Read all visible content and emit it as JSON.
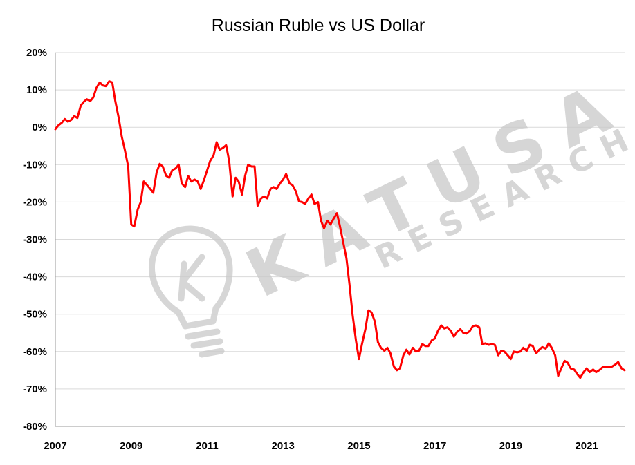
{
  "chart_data": {
    "type": "line",
    "title": "Russian Ruble vs US Dollar",
    "xlabel": "",
    "ylabel": "",
    "xlim": [
      2007,
      2022
    ],
    "ylim": [
      -80,
      20
    ],
    "x_ticks": [
      "2007",
      "2009",
      "2011",
      "2013",
      "2015",
      "2017",
      "2019",
      "2021"
    ],
    "y_ticks": [
      "20%",
      "10%",
      "0%",
      "-10%",
      "-20%",
      "-30%",
      "-40%",
      "-50%",
      "-60%",
      "-70%",
      "-80%"
    ],
    "grid": true,
    "legend": "none",
    "series": [
      {
        "color": "#ff0000",
        "points": [
          [
            2007.0,
            -0.5
          ],
          [
            2007.08,
            0.5
          ],
          [
            2007.17,
            1.2
          ],
          [
            2007.25,
            2.2
          ],
          [
            2007.33,
            1.5
          ],
          [
            2007.42,
            2.0
          ],
          [
            2007.5,
            3.0
          ],
          [
            2007.58,
            2.5
          ],
          [
            2007.67,
            5.8
          ],
          [
            2007.75,
            6.8
          ],
          [
            2007.83,
            7.5
          ],
          [
            2007.92,
            7.0
          ],
          [
            2008.0,
            8.0
          ],
          [
            2008.08,
            10.5
          ],
          [
            2008.17,
            12.0
          ],
          [
            2008.25,
            11.2
          ],
          [
            2008.33,
            11.0
          ],
          [
            2008.42,
            12.3
          ],
          [
            2008.5,
            12.0
          ],
          [
            2008.58,
            7.0
          ],
          [
            2008.67,
            2.5
          ],
          [
            2008.75,
            -2.5
          ],
          [
            2008.83,
            -6.0
          ],
          [
            2008.92,
            -10.5
          ],
          [
            2009.0,
            -26.0
          ],
          [
            2009.08,
            -26.5
          ],
          [
            2009.17,
            -22.0
          ],
          [
            2009.25,
            -20.0
          ],
          [
            2009.33,
            -14.5
          ],
          [
            2009.42,
            -15.5
          ],
          [
            2009.5,
            -16.5
          ],
          [
            2009.58,
            -17.5
          ],
          [
            2009.67,
            -12.0
          ],
          [
            2009.75,
            -9.8
          ],
          [
            2009.83,
            -10.5
          ],
          [
            2009.92,
            -13.0
          ],
          [
            2010.0,
            -13.5
          ],
          [
            2010.08,
            -11.5
          ],
          [
            2010.17,
            -11.0
          ],
          [
            2010.25,
            -10.0
          ],
          [
            2010.33,
            -15.0
          ],
          [
            2010.42,
            -16.0
          ],
          [
            2010.5,
            -13.0
          ],
          [
            2010.58,
            -14.5
          ],
          [
            2010.67,
            -14.0
          ],
          [
            2010.75,
            -14.5
          ],
          [
            2010.83,
            -16.5
          ],
          [
            2010.92,
            -14.0
          ],
          [
            2011.0,
            -11.5
          ],
          [
            2011.08,
            -9.0
          ],
          [
            2011.17,
            -7.5
          ],
          [
            2011.25,
            -4.0
          ],
          [
            2011.33,
            -6.0
          ],
          [
            2011.42,
            -5.5
          ],
          [
            2011.5,
            -4.8
          ],
          [
            2011.58,
            -9.0
          ],
          [
            2011.67,
            -18.5
          ],
          [
            2011.75,
            -13.5
          ],
          [
            2011.83,
            -14.5
          ],
          [
            2011.92,
            -18.0
          ],
          [
            2012.0,
            -13.0
          ],
          [
            2012.08,
            -10.0
          ],
          [
            2012.17,
            -10.5
          ],
          [
            2012.25,
            -10.5
          ],
          [
            2012.33,
            -21.0
          ],
          [
            2012.42,
            -19.0
          ],
          [
            2012.5,
            -18.5
          ],
          [
            2012.58,
            -19.0
          ],
          [
            2012.67,
            -16.5
          ],
          [
            2012.75,
            -16.0
          ],
          [
            2012.83,
            -16.5
          ],
          [
            2012.92,
            -15.0
          ],
          [
            2013.0,
            -14.0
          ],
          [
            2013.08,
            -12.5
          ],
          [
            2013.17,
            -15.0
          ],
          [
            2013.25,
            -15.5
          ],
          [
            2013.33,
            -17.0
          ],
          [
            2013.42,
            -19.8
          ],
          [
            2013.5,
            -20.0
          ],
          [
            2013.58,
            -20.5
          ],
          [
            2013.67,
            -19.0
          ],
          [
            2013.75,
            -18.0
          ],
          [
            2013.83,
            -20.5
          ],
          [
            2013.92,
            -20.0
          ],
          [
            2014.0,
            -25.0
          ],
          [
            2014.08,
            -27.0
          ],
          [
            2014.17,
            -25.0
          ],
          [
            2014.25,
            -26.0
          ],
          [
            2014.33,
            -24.5
          ],
          [
            2014.42,
            -23.0
          ],
          [
            2014.5,
            -26.5
          ],
          [
            2014.58,
            -30.5
          ],
          [
            2014.67,
            -35.0
          ],
          [
            2014.75,
            -42.0
          ],
          [
            2014.83,
            -50.0
          ],
          [
            2014.92,
            -57.0
          ],
          [
            2015.0,
            -62.0
          ],
          [
            2015.08,
            -58.0
          ],
          [
            2015.17,
            -54.0
          ],
          [
            2015.25,
            -49.0
          ],
          [
            2015.33,
            -49.5
          ],
          [
            2015.42,
            -52.0
          ],
          [
            2015.5,
            -57.5
          ],
          [
            2015.58,
            -59.0
          ],
          [
            2015.67,
            -59.8
          ],
          [
            2015.75,
            -59.0
          ],
          [
            2015.83,
            -60.5
          ],
          [
            2015.92,
            -64.0
          ],
          [
            2016.0,
            -65.0
          ],
          [
            2016.08,
            -64.5
          ],
          [
            2016.17,
            -61.0
          ],
          [
            2016.25,
            -59.5
          ],
          [
            2016.33,
            -60.8
          ],
          [
            2016.42,
            -59.0
          ],
          [
            2016.5,
            -60.0
          ],
          [
            2016.58,
            -59.8
          ],
          [
            2016.67,
            -58.0
          ],
          [
            2016.75,
            -58.5
          ],
          [
            2016.83,
            -58.5
          ],
          [
            2016.92,
            -57.0
          ],
          [
            2017.0,
            -56.5
          ],
          [
            2017.08,
            -54.5
          ],
          [
            2017.17,
            -53.0
          ],
          [
            2017.25,
            -53.8
          ],
          [
            2017.33,
            -53.5
          ],
          [
            2017.42,
            -54.5
          ],
          [
            2017.5,
            -56.0
          ],
          [
            2017.58,
            -54.8
          ],
          [
            2017.67,
            -54.0
          ],
          [
            2017.75,
            -55.0
          ],
          [
            2017.83,
            -55.2
          ],
          [
            2017.92,
            -54.5
          ],
          [
            2018.0,
            -53.2
          ],
          [
            2018.08,
            -53.0
          ],
          [
            2018.17,
            -53.5
          ],
          [
            2018.25,
            -58.0
          ],
          [
            2018.33,
            -57.8
          ],
          [
            2018.42,
            -58.2
          ],
          [
            2018.5,
            -58.0
          ],
          [
            2018.58,
            -58.2
          ],
          [
            2018.67,
            -61.0
          ],
          [
            2018.75,
            -59.8
          ],
          [
            2018.83,
            -60.0
          ],
          [
            2018.92,
            -61.0
          ],
          [
            2019.0,
            -62.0
          ],
          [
            2019.08,
            -60.0
          ],
          [
            2019.17,
            -60.2
          ],
          [
            2019.25,
            -60.0
          ],
          [
            2019.33,
            -59.0
          ],
          [
            2019.42,
            -59.8
          ],
          [
            2019.5,
            -58.2
          ],
          [
            2019.58,
            -58.5
          ],
          [
            2019.67,
            -60.5
          ],
          [
            2019.75,
            -59.5
          ],
          [
            2019.83,
            -58.8
          ],
          [
            2019.92,
            -59.2
          ],
          [
            2020.0,
            -57.8
          ],
          [
            2020.08,
            -59.0
          ],
          [
            2020.17,
            -61.0
          ],
          [
            2020.25,
            -66.5
          ],
          [
            2020.33,
            -64.5
          ],
          [
            2020.42,
            -62.5
          ],
          [
            2020.5,
            -63.0
          ],
          [
            2020.58,
            -64.5
          ],
          [
            2020.67,
            -64.8
          ],
          [
            2020.75,
            -66.0
          ],
          [
            2020.83,
            -67.0
          ],
          [
            2020.92,
            -65.5
          ],
          [
            2021.0,
            -64.5
          ],
          [
            2021.08,
            -65.5
          ],
          [
            2021.17,
            -64.8
          ],
          [
            2021.25,
            -65.5
          ],
          [
            2021.33,
            -65.0
          ],
          [
            2021.42,
            -64.2
          ],
          [
            2021.5,
            -64.0
          ],
          [
            2021.58,
            -64.2
          ],
          [
            2021.67,
            -64.0
          ],
          [
            2021.75,
            -63.5
          ],
          [
            2021.83,
            -62.8
          ],
          [
            2021.92,
            -64.5
          ],
          [
            2022.0,
            -65.0
          ]
        ]
      }
    ]
  },
  "watermark": {
    "brand": "KATUSA",
    "sub": "RESEARCH",
    "icon": "lightbulb-k-icon"
  }
}
